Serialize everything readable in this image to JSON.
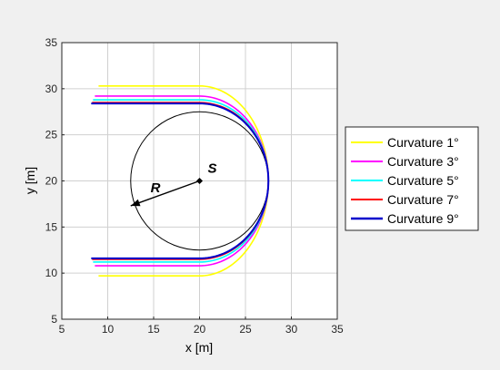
{
  "chart_data": {
    "type": "line",
    "xlabel": "x [m]",
    "ylabel": "y [m]",
    "xlim": [
      5,
      35
    ],
    "ylim": [
      5,
      35
    ],
    "xticks": [
      5,
      10,
      15,
      20,
      25,
      30,
      35
    ],
    "yticks": [
      5,
      10,
      15,
      20,
      25,
      30,
      35
    ],
    "grid": true,
    "legend_position": "right",
    "circle": {
      "center": [
        20,
        20
      ],
      "radius": 7.5,
      "color": "#000000"
    },
    "center_point": {
      "x": 20,
      "y": 20,
      "label": "S"
    },
    "radius_arrow": {
      "from": [
        20,
        20
      ],
      "to": [
        12.5,
        17.3
      ],
      "label": "R"
    },
    "series": [
      {
        "name": "Curvature 1°",
        "color": "#ffff00",
        "x_start": 9.0,
        "y_top": 30.3,
        "y_bottom": 9.7,
        "x_max": 27.5
      },
      {
        "name": "Curvature 3°",
        "color": "#ff00ff",
        "x_start": 8.6,
        "y_top": 29.2,
        "y_bottom": 10.8,
        "x_max": 27.5
      },
      {
        "name": "Curvature 5°",
        "color": "#00ffff",
        "x_start": 8.4,
        "y_top": 28.8,
        "y_bottom": 11.2,
        "x_max": 27.5
      },
      {
        "name": "Curvature 7°",
        "color": "#ff0000",
        "x_start": 8.3,
        "y_top": 28.5,
        "y_bottom": 11.5,
        "x_max": 27.5
      },
      {
        "name": "Curvature 9°",
        "color": "#0000cc",
        "x_start": 8.2,
        "y_top": 28.4,
        "y_bottom": 11.6,
        "x_max": 27.5
      }
    ]
  }
}
